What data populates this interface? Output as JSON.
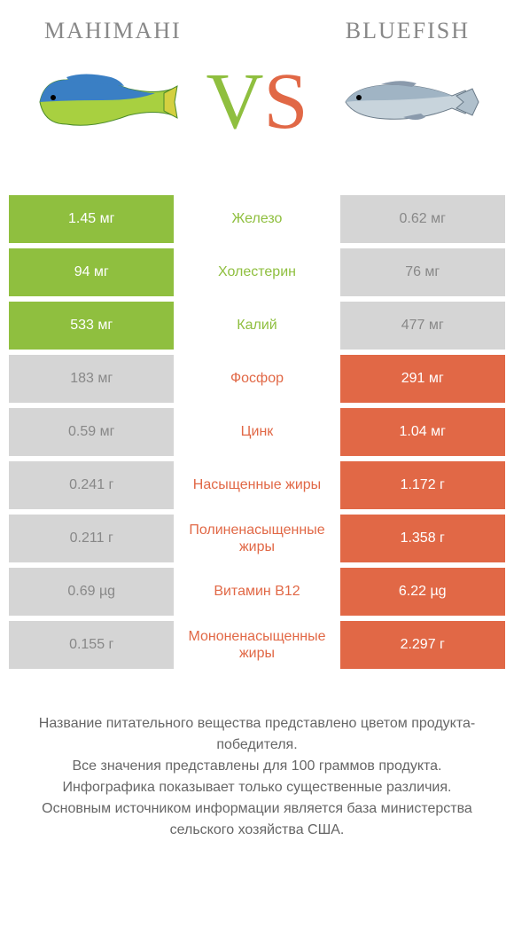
{
  "header": {
    "left": "Mahimahi",
    "right": "Bluefish",
    "vs_v": "V",
    "vs_s": "S"
  },
  "colors": {
    "green": "#8fbf3f",
    "orange": "#e16846",
    "green_text": "#8fbf3f",
    "orange_text": "#e16846",
    "dim_left": "#d5d5d5",
    "dim_right": "#d5d5d5"
  },
  "rows": [
    {
      "left": "1.45 мг",
      "mid": "Железо",
      "right": "0.62 мг",
      "winner": "left"
    },
    {
      "left": "94 мг",
      "mid": "Холестерин",
      "right": "76 мг",
      "winner": "left"
    },
    {
      "left": "533 мг",
      "mid": "Калий",
      "right": "477 мг",
      "winner": "left"
    },
    {
      "left": "183 мг",
      "mid": "Фосфор",
      "right": "291 мг",
      "winner": "right"
    },
    {
      "left": "0.59 мг",
      "mid": "Цинк",
      "right": "1.04 мг",
      "winner": "right"
    },
    {
      "left": "0.241 г",
      "mid": "Насыщенные жиры",
      "right": "1.172 г",
      "winner": "right"
    },
    {
      "left": "0.211 г",
      "mid": "Полиненасыщенные жиры",
      "right": "1.358 г",
      "winner": "right"
    },
    {
      "left": "0.69 µg",
      "mid": "Витамин B12",
      "right": "6.22 µg",
      "winner": "right"
    },
    {
      "left": "0.155 г",
      "mid": "Мононенасыщенные жиры",
      "right": "2.297 г",
      "winner": "right"
    }
  ],
  "footer": {
    "line1": "Название питательного вещества представлено цветом продукта-победителя.",
    "line2": "Все значения представлены для 100 граммов продукта.",
    "line3": "Инфографика показывает только существенные различия.",
    "line4": "Основным источником информации является база министерства сельского хозяйства США."
  }
}
